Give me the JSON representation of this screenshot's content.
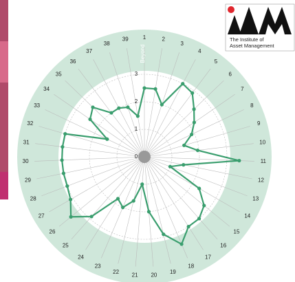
{
  "chart_data": {
    "type": "radar",
    "categories": [
      "1",
      "2",
      "3",
      "4",
      "5",
      "6",
      "7",
      "8",
      "9",
      "10",
      "11",
      "12",
      "13",
      "14",
      "15",
      "16",
      "17",
      "18",
      "19",
      "20",
      "21",
      "22",
      "23",
      "24",
      "25",
      "26",
      "27",
      "28",
      "29",
      "30",
      "31",
      "32",
      "33",
      "34",
      "35",
      "36",
      "37",
      "38",
      "39"
    ],
    "values": [
      2.5,
      2.5,
      2.0,
      3.0,
      2.9,
      2.5,
      2.2,
      1.9,
      1.5,
      1.95,
      3.45,
      1.45,
      1.0,
      2.3,
      2.8,
      3.0,
      3.0,
      3.45,
      2.9,
      2.0,
      1.0,
      1.65,
      2.0,
      1.8,
      2.9,
      3.45,
      3.1,
      3.0,
      3.0,
      3.0,
      3.0,
      3.0,
      1.5,
      2.4,
      2.6,
      2.0,
      2.0,
      1.9,
      1.5
    ],
    "color": "#3a9e6e",
    "ylim": [
      0,
      3.5
    ],
    "yticks": [
      0,
      1,
      2,
      3
    ],
    "band_label": "Beyond",
    "grid": true
  },
  "logo": {
    "line1": "The Institute of",
    "line2": "Asset Management"
  }
}
